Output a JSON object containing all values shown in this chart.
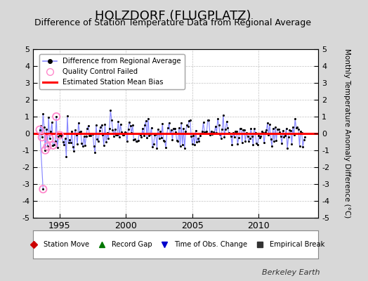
{
  "title": "HOLZDORF (FLUGPLATZ)",
  "subtitle": "Difference of Station Temperature Data from Regional Average",
  "ylabel": "Monthly Temperature Anomaly Difference (°C)",
  "xlabel_ticks": [
    1995,
    2000,
    2005,
    2010
  ],
  "ylim": [
    -5,
    5
  ],
  "xlim": [
    1993.0,
    2014.5
  ],
  "yticks": [
    -5,
    -4,
    -3,
    -2,
    -1,
    0,
    1,
    2,
    3,
    4,
    5
  ],
  "background_color": "#d8d8d8",
  "plot_bg_color": "#ffffff",
  "grid_color": "#bbbbbb",
  "bias_value": 0.0,
  "main_line_color": "#8888ff",
  "dot_color": "#000000",
  "bias_line_color": "#ff0000",
  "qc_marker_color": "#ff88cc",
  "title_fontsize": 13,
  "subtitle_fontsize": 9,
  "watermark": "Berkeley Earth",
  "legend_top_loc": "upper left",
  "figsize": [
    5.24,
    4.0
  ],
  "dpi": 100
}
